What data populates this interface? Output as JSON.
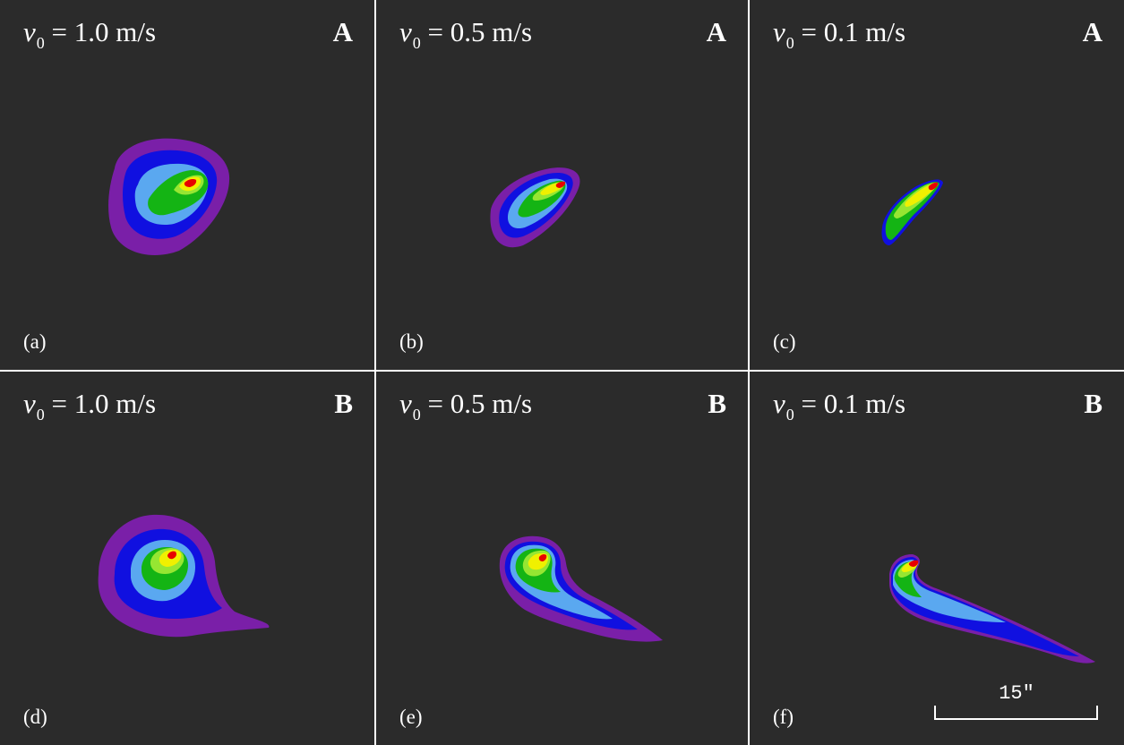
{
  "figure": {
    "colors": {
      "background": "#2b2b2b",
      "levels": [
        "#7a1fa8",
        "#1010e0",
        "#5aa8f0",
        "#14b414",
        "#96e632",
        "#f0f000",
        "#e80000"
      ]
    },
    "panels": [
      {
        "label": "(a)",
        "velocity_prefix": "v",
        "velocity_sub": "0",
        "velocity_value": " = 1.0 m/s",
        "model": "A",
        "shape": "blob-a"
      },
      {
        "label": "(b)",
        "velocity_prefix": "v",
        "velocity_sub": "0",
        "velocity_value": " = 0.5 m/s",
        "model": "A",
        "shape": "blob-b"
      },
      {
        "label": "(c)",
        "velocity_prefix": "v",
        "velocity_sub": "0",
        "velocity_value": " = 0.1 m/s",
        "model": "A",
        "shape": "blob-c"
      },
      {
        "label": "(d)",
        "velocity_prefix": "v",
        "velocity_sub": "0",
        "velocity_value": " = 1.0 m/s",
        "model": "B",
        "shape": "blob-d"
      },
      {
        "label": "(e)",
        "velocity_prefix": "v",
        "velocity_sub": "0",
        "velocity_value": " = 0.5 m/s",
        "model": "B",
        "shape": "blob-e"
      },
      {
        "label": "(f)",
        "velocity_prefix": "v",
        "velocity_sub": "0",
        "velocity_value": " = 0.1 m/s",
        "model": "B",
        "shape": "blob-f"
      }
    ],
    "scale_bar": {
      "label": "15\""
    }
  }
}
